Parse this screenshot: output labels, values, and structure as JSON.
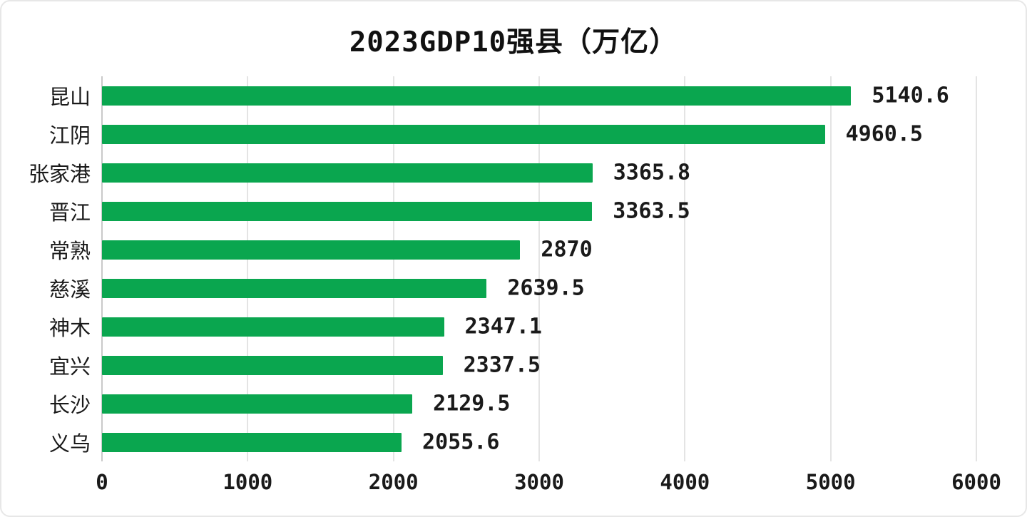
{
  "page": {
    "background": "#ffffff",
    "border_color": "#e7e7e7"
  },
  "chart_data": {
    "type": "bar",
    "orientation": "horizontal",
    "title": "2023GDP10强县（万亿）",
    "categories": [
      "昆山",
      "江阴",
      "张家港",
      "晋江",
      "常熟",
      "慈溪",
      "神木",
      "宜兴",
      "长沙",
      "义乌"
    ],
    "values": [
      5140.6,
      4960.5,
      3365.8,
      3363.5,
      2870,
      2639.5,
      2347.1,
      2337.5,
      2129.5,
      2055.6
    ],
    "value_labels": [
      "5140.6",
      "4960.5",
      "3365.8",
      "3363.5",
      "2870",
      "2639.5",
      "2347.1",
      "2337.5",
      "2129.5",
      "2055.6"
    ],
    "xlabel": "",
    "ylabel": "",
    "xlim": [
      0,
      6000
    ],
    "x_ticks": [
      "0",
      "1000",
      "2000",
      "3000",
      "4000",
      "5000",
      "6000"
    ],
    "grid": "vertical-only",
    "legend": "none",
    "bar_color": "#0aa64f",
    "gridline_color": "#e4e4e4",
    "axis_line_color": "#c9c9c9",
    "text_color": "#1a1a1a"
  }
}
